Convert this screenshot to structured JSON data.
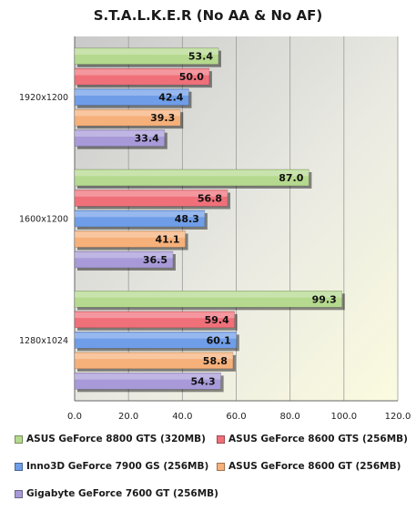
{
  "chart_data": {
    "type": "bar",
    "orientation": "horizontal",
    "title": "S.T.A.L.K.E.R (No AA & No AF)",
    "categories": [
      "1920x1200",
      "1600x1200",
      "1280x1024"
    ],
    "xlim": [
      0,
      120
    ],
    "xticks": [
      "0.0",
      "20.0",
      "40.0",
      "60.0",
      "80.0",
      "100.0",
      "120.0"
    ],
    "grid": true,
    "legend_position": "bottom",
    "series": [
      {
        "name": "ASUS GeForce 8800 GTS (320MB)",
        "color": "#b5d98e",
        "values": [
          53.4,
          87.0,
          99.3
        ],
        "labels": [
          "53.4",
          "87.0",
          "99.3"
        ]
      },
      {
        "name": "ASUS GeForce 8600 GTS (256MB)",
        "color": "#f0707a",
        "values": [
          50.0,
          56.8,
          59.4
        ],
        "labels": [
          "50.0",
          "56.8",
          "59.4"
        ]
      },
      {
        "name": "Inno3D GeForce 7900 GS (256MB)",
        "color": "#6f9de8",
        "values": [
          42.4,
          48.3,
          60.1
        ],
        "labels": [
          "42.4",
          "48.3",
          "60.1"
        ]
      },
      {
        "name": "ASUS GeForce 8600 GT (256MB)",
        "color": "#f6b07a",
        "values": [
          39.3,
          41.1,
          58.8
        ],
        "labels": [
          "39.3",
          "41.1",
          "58.8"
        ]
      },
      {
        "name": "Gigabyte GeForce 7600 GT (256MB)",
        "color": "#a89ad8",
        "values": [
          33.4,
          36.5,
          54.3
        ],
        "labels": [
          "33.4",
          "36.5",
          "54.3"
        ]
      }
    ]
  }
}
